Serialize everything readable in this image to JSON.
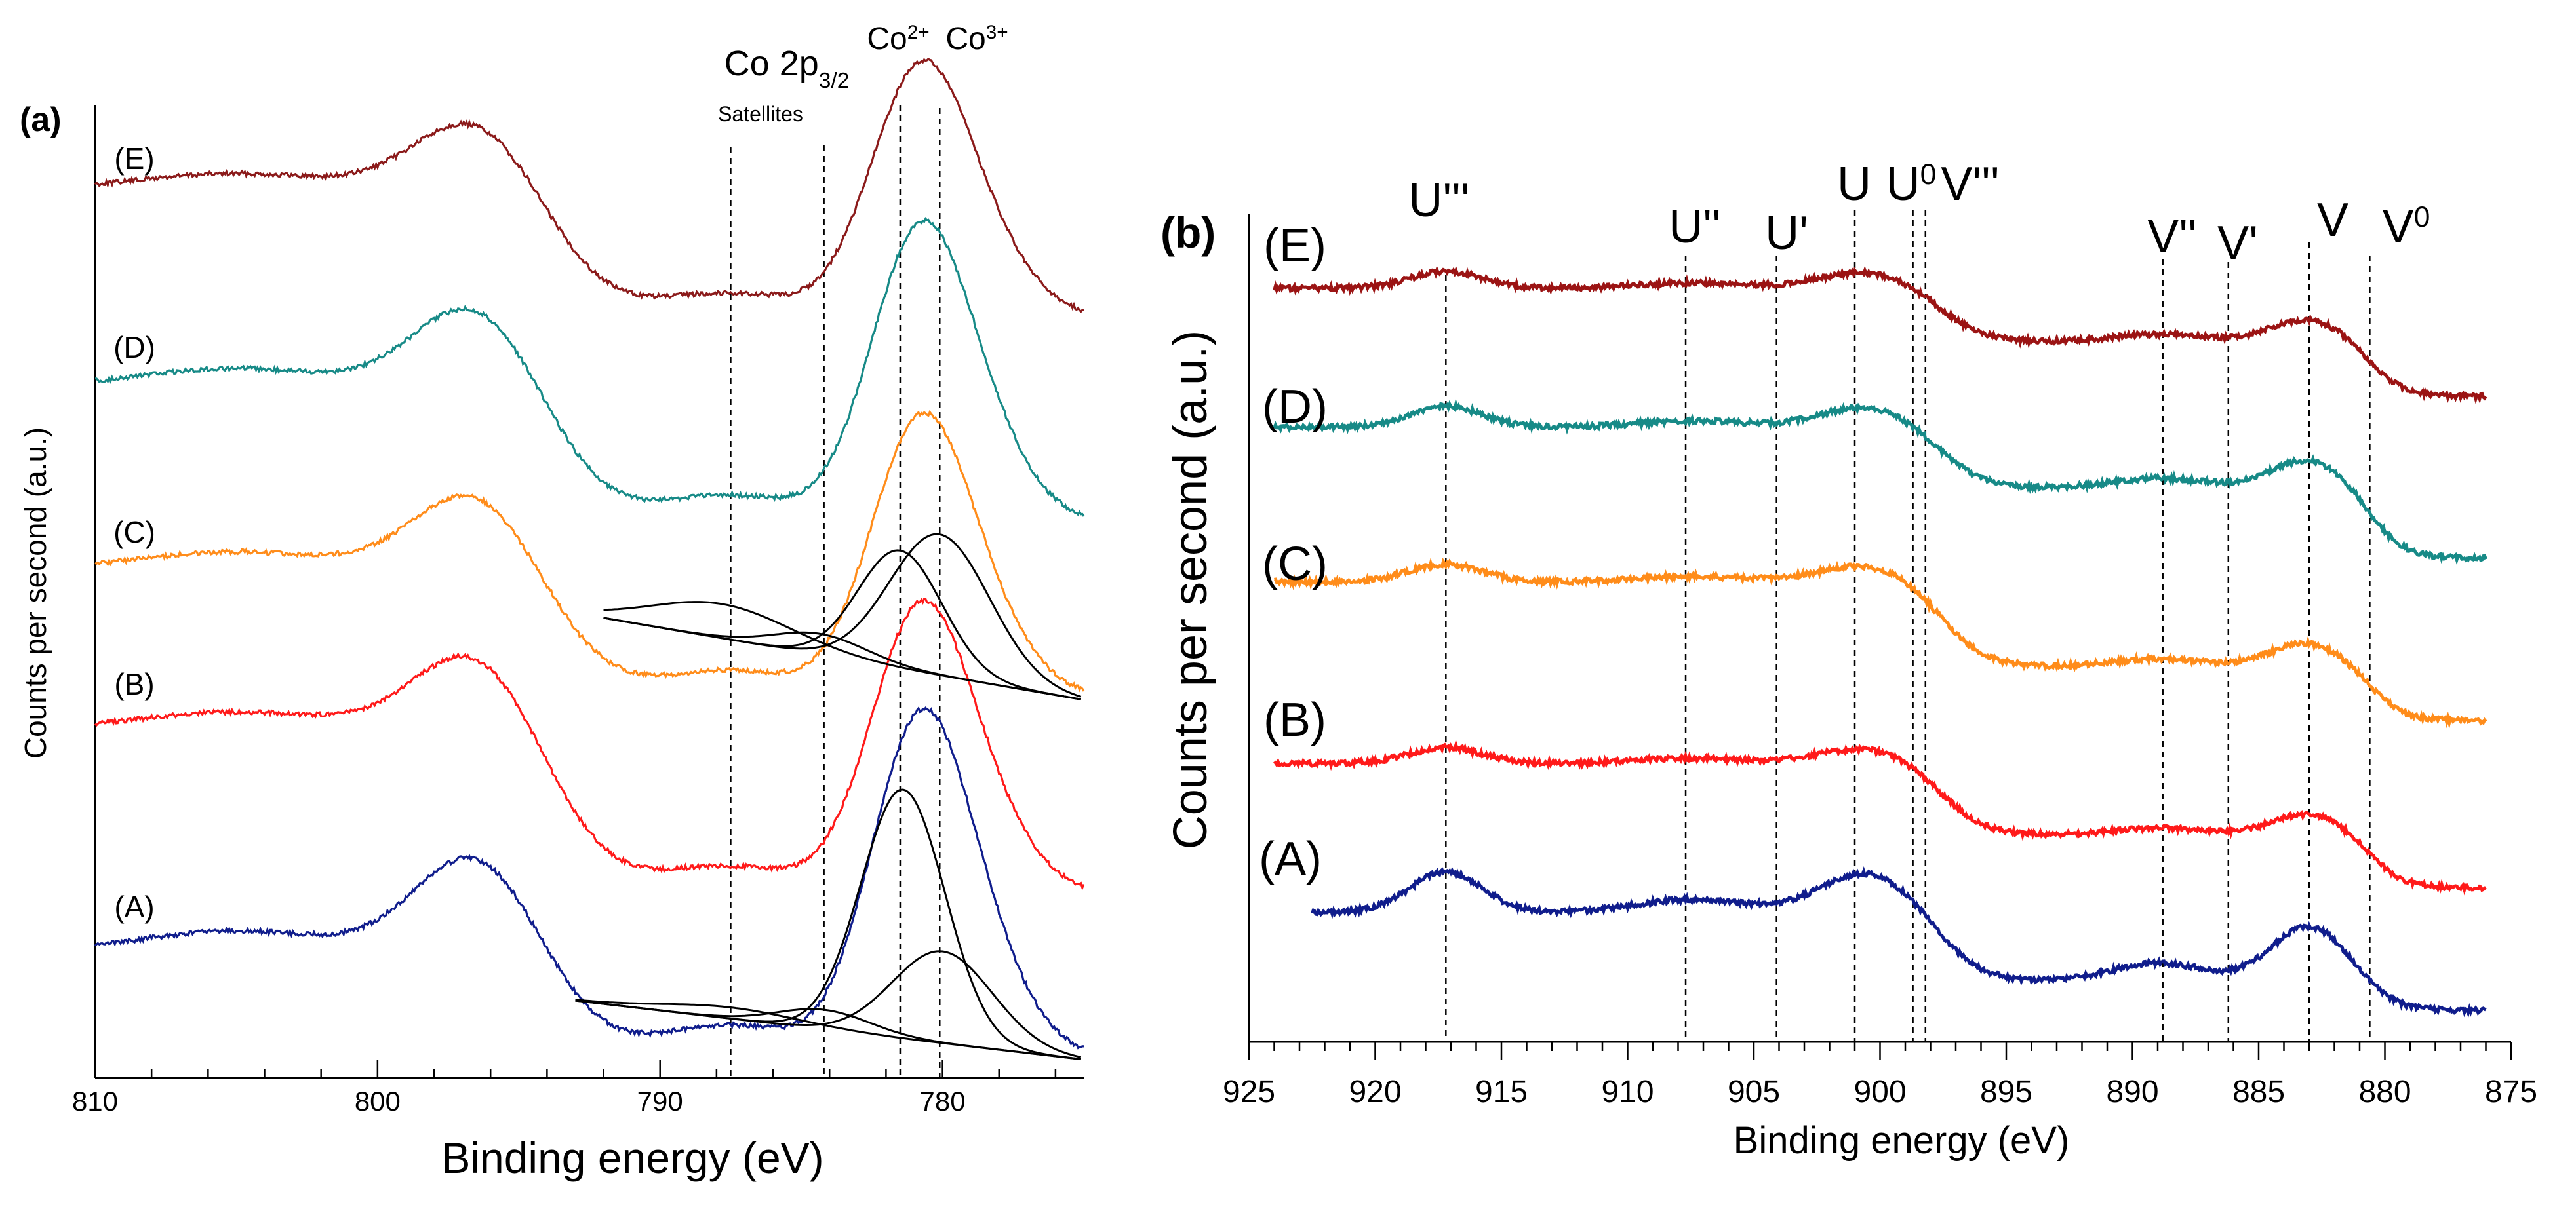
{
  "chart_data": [
    {
      "type": "line",
      "panel_label": "(a)",
      "xlabel": "Binding energy (eV)",
      "ylabel": "Counts per second (a.u.)",
      "xlim": [
        810,
        775
      ],
      "x_ticks": [
        810,
        800,
        790,
        780
      ],
      "reference_lines": [
        {
          "x": 787.5,
          "label": "Co 2p",
          "sub": "3/2",
          "note": "Satellites"
        },
        {
          "x": 784.2,
          "label": "",
          "sub": "",
          "note": ""
        },
        {
          "x": 781.5,
          "label": "Co",
          "sup": "2+"
        },
        {
          "x": 780.1,
          "label": "Co",
          "sup": "3+"
        }
      ],
      "series": [
        {
          "name": "(E)",
          "color": "#8b1a1a"
        },
        {
          "name": "(D)",
          "color": "#178a87"
        },
        {
          "name": "(C)",
          "color": "#ff8c1a",
          "fits": true
        },
        {
          "name": "(B)",
          "color": "#ff1a1a"
        },
        {
          "name": "(A)",
          "color": "#101d8c",
          "fits": true
        }
      ]
    },
    {
      "type": "line",
      "panel_label": "(b)",
      "xlabel": "Binding energy (eV)",
      "ylabel": "Counts per second (a.u.)",
      "xlim": [
        925,
        875
      ],
      "x_ticks": [
        925,
        920,
        915,
        910,
        905,
        900,
        895,
        890,
        885,
        880,
        875
      ],
      "reference_lines": [
        {
          "x": 917.2,
          "label": "U'''"
        },
        {
          "x": 907.7,
          "label": "U''"
        },
        {
          "x": 904.1,
          "label": "U'"
        },
        {
          "x": 901.0,
          "label": "U"
        },
        {
          "x": 898.7,
          "label": "U",
          "sup": "0"
        },
        {
          "x": 898.2,
          "label": "V'''"
        },
        {
          "x": 888.8,
          "label": "V''"
        },
        {
          "x": 886.2,
          "label": "V'"
        },
        {
          "x": 883.0,
          "label": "V"
        },
        {
          "x": 880.6,
          "label": "V",
          "sup": "0"
        }
      ],
      "series": [
        {
          "name": "(E)",
          "color": "#9b1414"
        },
        {
          "name": "(D)",
          "color": "#178a87"
        },
        {
          "name": "(C)",
          "color": "#ff8c1a"
        },
        {
          "name": "(B)",
          "color": "#ff1a1a"
        },
        {
          "name": "(A)",
          "color": "#101d8c"
        }
      ]
    }
  ]
}
